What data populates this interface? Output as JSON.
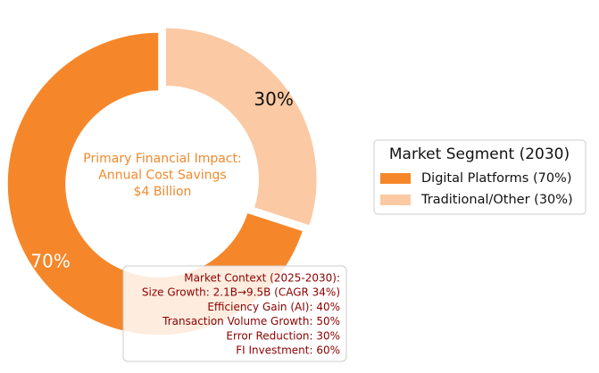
{
  "chart_data": {
    "type": "donut",
    "categories": [
      "Digital Platforms (70%)",
      "Traditional/Other (30%)"
    ],
    "values": [
      70,
      30
    ],
    "value_labels": [
      "70%",
      "30%"
    ],
    "colors": [
      "#f5872a",
      "#fbc9a3"
    ],
    "center_text": [
      "Primary Financial Impact:",
      "Annual Cost Savings",
      "$4 Billion"
    ],
    "legend_title": "Market Segment (2030)",
    "legend_position": "right",
    "annotation": [
      "Market Context (2025-2030):",
      "Size Growth: 2.1B→9.5B (CAGR 34%)",
      "Efficiency Gain (AI): 40%",
      "Transaction Volume Growth: 50%",
      "Error Reduction: 30%",
      "FI Investment: 60%"
    ]
  }
}
